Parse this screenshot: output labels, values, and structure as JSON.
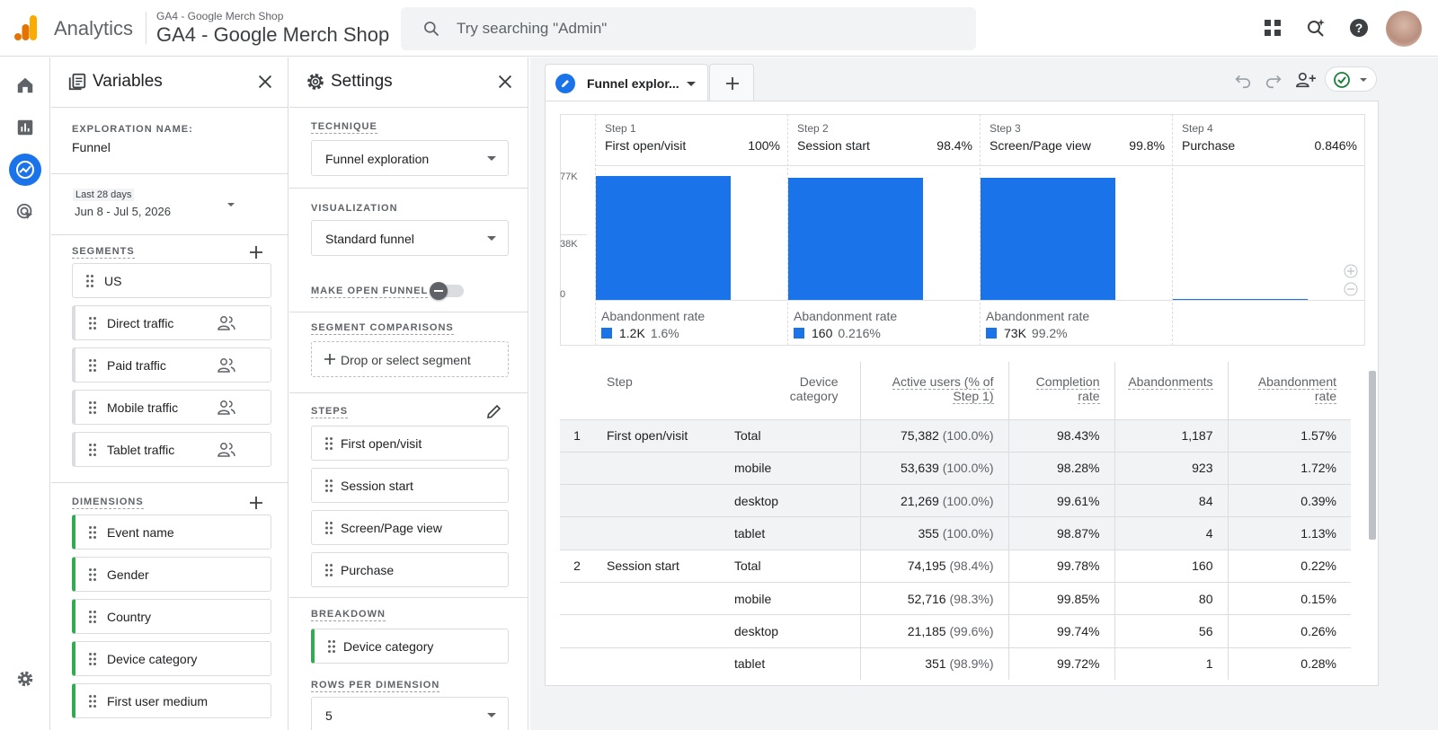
{
  "header": {
    "app_name": "Analytics",
    "account_small": "GA4 - Google Merch Shop",
    "account_big": "GA4 - Google Merch Shop",
    "search_placeholder": "Try searching \"Admin\""
  },
  "variables": {
    "title": "Variables",
    "exploration_name_label": "EXPLORATION NAME:",
    "exploration_name": "Funnel",
    "date_preset": "Last 28 days",
    "date_range": "Jun 8 - Jul 5, 2026",
    "segments_label": "SEGMENTS",
    "segments": [
      "US",
      "Direct traffic",
      "Paid traffic",
      "Mobile traffic",
      "Tablet traffic"
    ],
    "dimensions_label": "DIMENSIONS",
    "dimensions": [
      "Event name",
      "Gender",
      "Country",
      "Device category",
      "First user medium"
    ]
  },
  "settings": {
    "title": "Settings",
    "technique_label": "TECHNIQUE",
    "technique": "Funnel exploration",
    "visualization_label": "VISUALIZATION",
    "visualization": "Standard funnel",
    "open_funnel_label": "MAKE OPEN FUNNEL",
    "open_funnel_on": false,
    "segment_comparisons_label": "SEGMENT COMPARISONS",
    "drop_segment": "Drop or select segment",
    "steps_label": "STEPS",
    "steps": [
      "First open/visit",
      "Session start",
      "Screen/Page view",
      "Purchase"
    ],
    "breakdown_label": "BREAKDOWN",
    "breakdown": "Device category",
    "rows_label": "ROWS PER DIMENSION",
    "rows_value": "5"
  },
  "tab": {
    "label": "Funnel explor..."
  },
  "funnel": {
    "y_ticks": [
      "77K",
      "38K",
      "0"
    ],
    "abandon_label": "Abandonment rate",
    "steps": [
      {
        "num": "Step 1",
        "name": "First open/visit",
        "pct": "100%",
        "active": 75382,
        "ab_count": "1.2K",
        "ab_rate": "1.6%"
      },
      {
        "num": "Step 2",
        "name": "Session start",
        "pct": "98.4%",
        "active": 74195,
        "ab_count": "160",
        "ab_rate": "0.216%"
      },
      {
        "num": "Step 3",
        "name": "Screen/Page view",
        "pct": "99.8%",
        "active": 74035,
        "ab_count": "73K",
        "ab_rate": "99.2%"
      },
      {
        "num": "Step 4",
        "name": "Purchase",
        "pct": "0.846%",
        "active": 638,
        "ab_count": "",
        "ab_rate": ""
      }
    ],
    "y_max": 77000
  },
  "table": {
    "headers": {
      "step": "Step",
      "device": [
        "Device",
        "category"
      ],
      "active": [
        "Active users (% of",
        "Step 1)"
      ],
      "completion": [
        "Completion",
        "rate"
      ],
      "abandonments": "Abandonments",
      "rate": [
        "Abandonment",
        "rate"
      ]
    },
    "rows": [
      {
        "num": "1",
        "step": "First open/visit",
        "device": "Total",
        "active": "75,382",
        "active_pct": "(100.0%)",
        "completion": "98.43%",
        "abandon": "1,187",
        "rate": "1.57%",
        "shade": true
      },
      {
        "num": "",
        "step": "",
        "device": "mobile",
        "active": "53,639",
        "active_pct": "(100.0%)",
        "completion": "98.28%",
        "abandon": "923",
        "rate": "1.72%",
        "shade": true
      },
      {
        "num": "",
        "step": "",
        "device": "desktop",
        "active": "21,269",
        "active_pct": "(100.0%)",
        "completion": "99.61%",
        "abandon": "84",
        "rate": "0.39%",
        "shade": true
      },
      {
        "num": "",
        "step": "",
        "device": "tablet",
        "active": "355",
        "active_pct": "(100.0%)",
        "completion": "98.87%",
        "abandon": "4",
        "rate": "1.13%",
        "shade": true
      },
      {
        "num": "2",
        "step": "Session start",
        "device": "Total",
        "active": "74,195",
        "active_pct": "(98.4%)",
        "completion": "99.78%",
        "abandon": "160",
        "rate": "0.22%",
        "shade": false
      },
      {
        "num": "",
        "step": "",
        "device": "mobile",
        "active": "52,716",
        "active_pct": "(98.3%)",
        "completion": "99.85%",
        "abandon": "80",
        "rate": "0.15%",
        "shade": false
      },
      {
        "num": "",
        "step": "",
        "device": "desktop",
        "active": "21,185",
        "active_pct": "(99.6%)",
        "completion": "99.74%",
        "abandon": "56",
        "rate": "0.26%",
        "shade": false
      },
      {
        "num": "",
        "step": "",
        "device": "tablet",
        "active": "351",
        "active_pct": "(98.9%)",
        "completion": "99.72%",
        "abandon": "1",
        "rate": "0.28%",
        "shade": false
      }
    ]
  },
  "colors": {
    "accent": "#1a73e8",
    "dimension_green": "#34a853",
    "orange": "#f9ab00"
  }
}
